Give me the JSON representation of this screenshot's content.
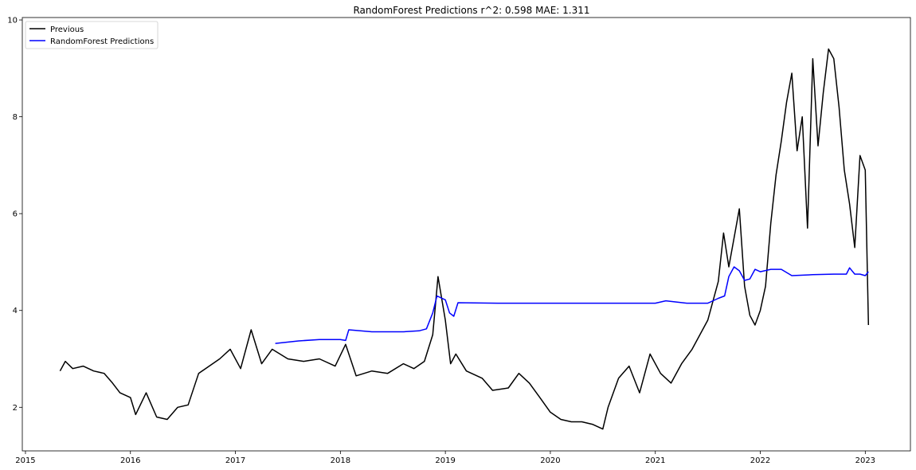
{
  "chart_data": {
    "type": "line",
    "title": "RandomForest Predictions r^2: 0.598 MAE: 1.311",
    "xlabel": "",
    "ylabel": "",
    "xlim": [
      2014.97,
      2023.43
    ],
    "ylim": [
      1.1,
      10.05
    ],
    "grid": false,
    "legend_position": "top-left",
    "x_ticks": [
      2015,
      2016,
      2017,
      2018,
      2019,
      2020,
      2021,
      2022,
      2023
    ],
    "x_tick_labels": [
      "2015",
      "2016",
      "2017",
      "2018",
      "2019",
      "2020",
      "2021",
      "2022",
      "2023"
    ],
    "y_ticks": [
      2,
      4,
      6,
      8,
      10
    ],
    "y_tick_labels": [
      "2",
      "4",
      "6",
      "8",
      "10"
    ],
    "series": [
      {
        "name": "Previous",
        "color": "#000000",
        "x": [
          2015.33,
          2015.38,
          2015.45,
          2015.55,
          2015.65,
          2015.75,
          2015.83,
          2015.9,
          2016.0,
          2016.05,
          2016.15,
          2016.25,
          2016.35,
          2016.45,
          2016.55,
          2016.65,
          2016.75,
          2016.85,
          2016.95,
          2017.05,
          2017.15,
          2017.25,
          2017.35,
          2017.5,
          2017.65,
          2017.8,
          2017.95,
          2018.05,
          2018.15,
          2018.3,
          2018.45,
          2018.6,
          2018.7,
          2018.8,
          2018.88,
          2018.93,
          2019.0,
          2019.05,
          2019.1,
          2019.2,
          2019.35,
          2019.45,
          2019.6,
          2019.7,
          2019.8,
          2019.9,
          2020.0,
          2020.1,
          2020.2,
          2020.3,
          2020.4,
          2020.5,
          2020.55,
          2020.65,
          2020.75,
          2020.85,
          2020.95,
          2021.05,
          2021.15,
          2021.25,
          2021.35,
          2021.5,
          2021.6,
          2021.65,
          2021.7,
          2021.75,
          2021.8,
          2021.85,
          2021.9,
          2021.95,
          2022.0,
          2022.05,
          2022.1,
          2022.15,
          2022.2,
          2022.25,
          2022.3,
          2022.35,
          2022.4,
          2022.45,
          2022.5,
          2022.55,
          2022.6,
          2022.65,
          2022.7,
          2022.75,
          2022.8,
          2022.85,
          2022.9,
          2022.95,
          2023.0,
          2023.03
        ],
        "y": [
          2.75,
          2.95,
          2.8,
          2.85,
          2.75,
          2.7,
          2.5,
          2.3,
          2.2,
          1.85,
          2.3,
          1.8,
          1.75,
          2.0,
          2.05,
          2.7,
          2.85,
          3.0,
          3.2,
          2.8,
          3.6,
          2.9,
          3.2,
          3.0,
          2.95,
          3.0,
          2.85,
          3.3,
          2.65,
          2.75,
          2.7,
          2.9,
          2.8,
          2.95,
          3.5,
          4.7,
          3.8,
          2.9,
          3.1,
          2.75,
          2.6,
          2.35,
          2.4,
          2.7,
          2.5,
          2.2,
          1.9,
          1.75,
          1.7,
          1.7,
          1.65,
          1.55,
          2.0,
          2.6,
          2.85,
          2.3,
          3.1,
          2.7,
          2.5,
          2.9,
          3.2,
          3.8,
          4.6,
          5.6,
          4.9,
          5.5,
          6.1,
          4.5,
          3.9,
          3.7,
          4.0,
          4.5,
          5.8,
          6.8,
          7.5,
          8.3,
          8.9,
          7.3,
          8.0,
          5.7,
          9.2,
          7.4,
          8.5,
          9.4,
          9.2,
          8.2,
          6.9,
          6.2,
          5.3,
          7.2,
          6.9,
          3.7
        ]
      },
      {
        "name": "RandomForest Predictions",
        "color": "#0000ff",
        "x": [
          2017.38,
          2017.6,
          2017.8,
          2018.0,
          2018.05,
          2018.08,
          2018.3,
          2018.6,
          2018.75,
          2018.82,
          2018.88,
          2018.92,
          2019.0,
          2019.04,
          2019.08,
          2019.12,
          2019.5,
          2020.0,
          2020.5,
          2021.0,
          2021.1,
          2021.3,
          2021.5,
          2021.6,
          2021.66,
          2021.7,
          2021.75,
          2021.8,
          2021.85,
          2021.9,
          2021.95,
          2022.0,
          2022.1,
          2022.2,
          2022.3,
          2022.5,
          2022.7,
          2022.82,
          2022.85,
          2022.9,
          2022.95,
          2023.0,
          2023.03
        ],
        "y": [
          3.32,
          3.37,
          3.4,
          3.4,
          3.38,
          3.6,
          3.56,
          3.56,
          3.58,
          3.62,
          3.95,
          4.3,
          4.22,
          3.95,
          3.88,
          4.16,
          4.15,
          4.15,
          4.15,
          4.15,
          4.2,
          4.15,
          4.15,
          4.25,
          4.3,
          4.7,
          4.9,
          4.82,
          4.62,
          4.65,
          4.85,
          4.8,
          4.85,
          4.85,
          4.72,
          4.74,
          4.75,
          4.75,
          4.88,
          4.75,
          4.75,
          4.72,
          4.8
        ]
      }
    ]
  }
}
